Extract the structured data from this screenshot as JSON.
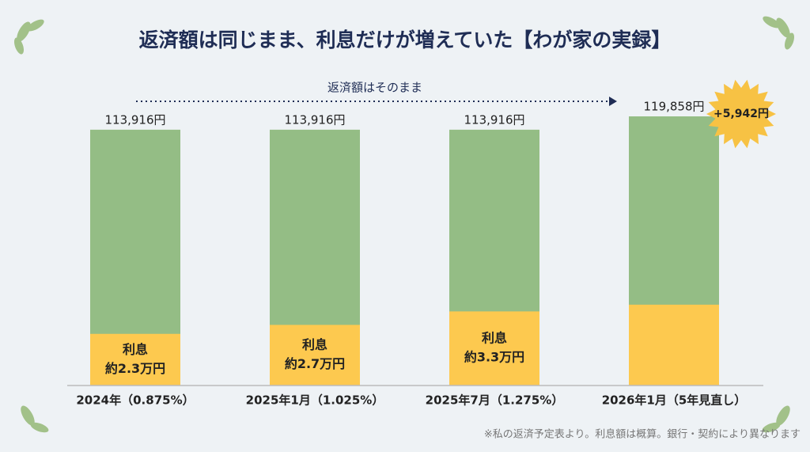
{
  "chart_data": {
    "type": "bar",
    "title": "返済額は同じまま、利息だけが増えていた【わが家の実録】",
    "categories": [
      "2024年（0.875%）",
      "2025年1月（1.025%）",
      "2025年7月（1.275%）",
      "2026年1月（5年見直し）"
    ],
    "series": [
      {
        "color": "#94bd85",
        "values": [
          113916,
          113916,
          113916,
          119858
        ],
        "value_labels": [
          "113,916円",
          "113,916円",
          "113,916円",
          "119,858円"
        ]
      },
      {
        "name": "利息",
        "color": "#fdc94f",
        "values": [
          23000,
          27000,
          33000,
          36000
        ],
        "value_labels": [
          "約2.3万円",
          "約2.7万円",
          "約3.3万円",
          null
        ]
      }
    ],
    "arrow_label": "返済額はそのまま",
    "increase_label": "+5,942円",
    "note": "※私の返済予定表より。利息額は概算。銀行・契約により異なります"
  }
}
